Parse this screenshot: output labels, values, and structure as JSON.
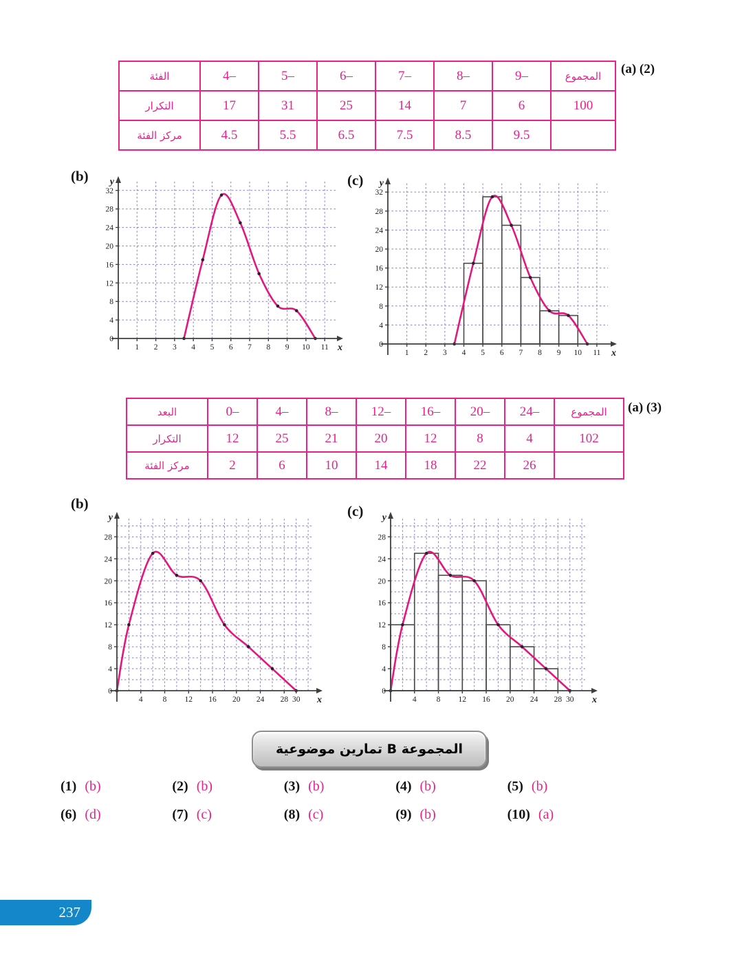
{
  "section2": {
    "label": "(a) (2)"
  },
  "section3": {
    "label": "(a) (3)"
  },
  "banner": {
    "text": "المجموعة B تمارين موضوعية"
  },
  "footer": {
    "page_number": "237"
  },
  "tables": [
    {
      "name": "frequency-table-q2",
      "rows": [
        {
          "header": "الفئة",
          "cells": [
            "4–",
            "5–",
            "6–",
            "7–",
            "8–",
            "9–",
            "المجموع"
          ]
        },
        {
          "header": "التكرار",
          "cells": [
            "17",
            "31",
            "25",
            "14",
            "7",
            "6",
            "100"
          ]
        },
        {
          "header": "مركز الفئة",
          "cells": [
            "4.5",
            "5.5",
            "6.5",
            "7.5",
            "8.5",
            "9.5",
            ""
          ]
        }
      ]
    },
    {
      "name": "frequency-table-q3",
      "rows": [
        {
          "header": "البعد",
          "cells": [
            "0–",
            "4–",
            "8–",
            "12–",
            "16–",
            "20–",
            "24–",
            "المجموع"
          ]
        },
        {
          "header": "التكرار",
          "cells": [
            "12",
            "25",
            "21",
            "20",
            "12",
            "8",
            "4",
            "102"
          ]
        },
        {
          "header": "مركز الفئة",
          "cells": [
            "2",
            "6",
            "10",
            "14",
            "18",
            "22",
            "26",
            ""
          ]
        }
      ]
    }
  ],
  "chart_data": [
    {
      "type": "line",
      "label": "(b)",
      "title": "Frequency curve for classes 4- to 9-",
      "x": [
        3.5,
        4.5,
        5.5,
        6.5,
        7.5,
        8.5,
        9.5,
        10.5
      ],
      "y": [
        0,
        17,
        31,
        25,
        14,
        7,
        6,
        0
      ],
      "xticks": [
        1,
        2,
        3,
        4,
        5,
        6,
        7,
        8,
        9,
        10,
        11
      ],
      "yticks": [
        0,
        4,
        8,
        12,
        16,
        20,
        24,
        28,
        32
      ],
      "xlim": [
        0,
        11.8
      ],
      "ylim": [
        0,
        34.2
      ],
      "grid": {
        "x_step": 1,
        "x_max": 11,
        "y_step": 4,
        "y_max": 32
      },
      "xlabel": "x",
      "ylabel": "y"
    },
    {
      "type": "histogram+line",
      "label": "(c)",
      "title": "Histogram with frequency curve for classes 4- to 9-",
      "bars": [
        {
          "x0": 4,
          "x1": 5,
          "h": 17
        },
        {
          "x0": 5,
          "x1": 6,
          "h": 31
        },
        {
          "x0": 6,
          "x1": 7,
          "h": 25
        },
        {
          "x0": 7,
          "x1": 8,
          "h": 14
        },
        {
          "x0": 8,
          "x1": 9,
          "h": 7
        },
        {
          "x0": 9,
          "x1": 10,
          "h": 6
        }
      ],
      "x": [
        3.5,
        4.5,
        5.5,
        6.5,
        7.5,
        8.5,
        9.5,
        10.5
      ],
      "y": [
        0,
        17,
        31,
        25,
        14,
        7,
        6,
        0
      ],
      "xticks": [
        1,
        2,
        3,
        4,
        5,
        6,
        7,
        8,
        9,
        10,
        11
      ],
      "yticks": [
        0,
        4,
        8,
        12,
        16,
        20,
        24,
        28,
        32
      ],
      "xlim": [
        0,
        11.8
      ],
      "ylim": [
        0,
        34.2
      ],
      "grid": {
        "x_step": 1,
        "x_max": 11,
        "y_step": 4,
        "y_max": 32
      },
      "xlabel": "x",
      "ylabel": "y"
    },
    {
      "type": "line",
      "label": "(b)",
      "title": "Frequency curve for classes 0- to 24-",
      "x": [
        0,
        2,
        6,
        10,
        14,
        18,
        22,
        26,
        30
      ],
      "y": [
        0,
        12,
        25,
        21,
        20,
        12,
        8,
        4,
        0
      ],
      "xticks": [
        4,
        8,
        12,
        16,
        20,
        24,
        28,
        30
      ],
      "yticks": [
        0,
        4,
        8,
        12,
        16,
        20,
        24,
        28
      ],
      "xlim": [
        0,
        33.6
      ],
      "ylim": [
        0,
        31.8
      ],
      "grid": {
        "x_step": 2,
        "x_max": 32,
        "y_step": 2,
        "y_max": 30
      },
      "xlabel": "x",
      "ylabel": "y"
    },
    {
      "type": "histogram+line",
      "label": "(c)",
      "title": "Histogram with frequency curve for classes 0- to 24-",
      "bars": [
        {
          "x0": 0,
          "x1": 4,
          "h": 12
        },
        {
          "x0": 4,
          "x1": 8,
          "h": 25
        },
        {
          "x0": 8,
          "x1": 12,
          "h": 21
        },
        {
          "x0": 12,
          "x1": 16,
          "h": 20
        },
        {
          "x0": 16,
          "x1": 20,
          "h": 12
        },
        {
          "x0": 20,
          "x1": 24,
          "h": 8
        },
        {
          "x0": 24,
          "x1": 28,
          "h": 4
        }
      ],
      "x": [
        0,
        2,
        6,
        10,
        14,
        18,
        22,
        26,
        30
      ],
      "y": [
        0,
        12,
        25,
        21,
        20,
        12,
        8,
        4,
        0
      ],
      "xticks": [
        4,
        8,
        12,
        16,
        20,
        24,
        28,
        30
      ],
      "yticks": [
        0,
        4,
        8,
        12,
        16,
        20,
        24,
        28
      ],
      "xlim": [
        0,
        33.6
      ],
      "ylim": [
        0,
        31.8
      ],
      "grid": {
        "x_step": 2,
        "x_max": 32,
        "y_step": 2,
        "y_max": 30
      },
      "xlabel": "x",
      "ylabel": "y"
    }
  ],
  "answers": [
    {
      "n": "(1)",
      "a": "(b)"
    },
    {
      "n": "(2)",
      "a": "(b)"
    },
    {
      "n": "(3)",
      "a": "(b)"
    },
    {
      "n": "(4)",
      "a": "(b)"
    },
    {
      "n": "(5)",
      "a": "(b)"
    },
    {
      "n": "(6)",
      "a": "(d)"
    },
    {
      "n": "(7)",
      "a": "(c)"
    },
    {
      "n": "(8)",
      "a": "(c)"
    },
    {
      "n": "(9)",
      "a": "(b)"
    },
    {
      "n": "(10)",
      "a": "(a)"
    }
  ],
  "colors": {
    "table_pink": "#e8218c",
    "curve_pink": "#e4177f",
    "grid_violet": "#8a7cc8",
    "axis_gray": "#3f3f3f",
    "bar_gray": "#4a4a4a",
    "dot_dark": "#2d1f30",
    "page_tab_blue": "#1487ca"
  }
}
